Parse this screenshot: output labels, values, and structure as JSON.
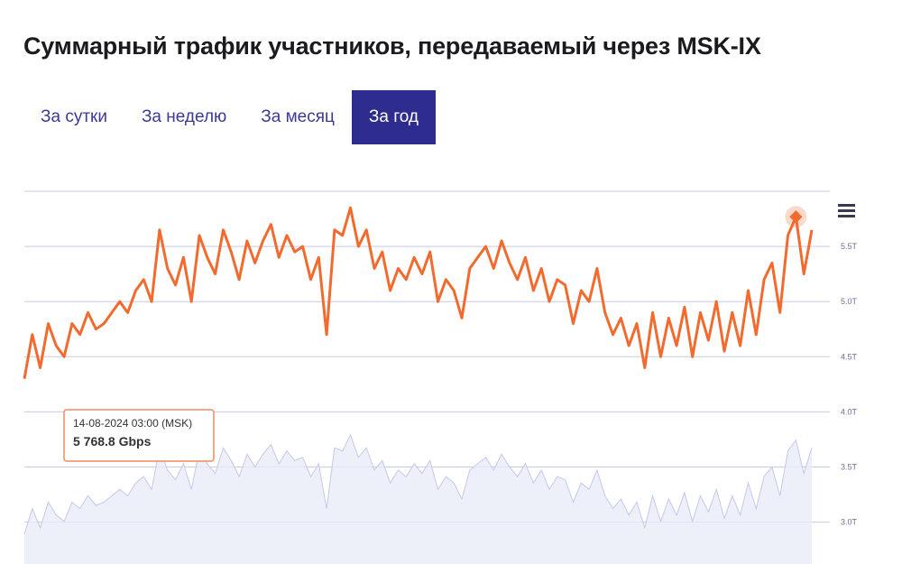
{
  "header": {
    "title": "Суммарный трафик участников, передаваемый через MSK-IX"
  },
  "tabs": [
    {
      "label": "За сутки",
      "selected": false
    },
    {
      "label": "За неделю",
      "selected": false
    },
    {
      "label": "За месяц",
      "selected": false
    },
    {
      "label": "За год",
      "selected": true
    }
  ],
  "chart_data": {
    "type": "line",
    "ylim": [
      2.62,
      6.0
    ],
    "yticks": [
      {
        "value": 3.0,
        "label": "3.0T"
      },
      {
        "value": 3.5,
        "label": "3.5T"
      },
      {
        "value": 4.0,
        "label": "4.0T"
      },
      {
        "value": 4.5,
        "label": "4.5T"
      },
      {
        "value": 5.0,
        "label": "5.0T"
      },
      {
        "value": 5.5,
        "label": "5.5T"
      }
    ],
    "grid": true,
    "series": [
      {
        "color": "#f26a2e",
        "values": [
          4.3,
          4.7,
          4.4,
          4.8,
          4.6,
          4.5,
          4.8,
          4.7,
          4.9,
          4.75,
          4.8,
          4.9,
          5.0,
          4.9,
          5.1,
          5.2,
          5.0,
          5.65,
          5.3,
          5.15,
          5.4,
          5.0,
          5.6,
          5.4,
          5.25,
          5.65,
          5.45,
          5.2,
          5.55,
          5.35,
          5.55,
          5.7,
          5.4,
          5.6,
          5.45,
          5.5,
          5.2,
          5.4,
          4.7,
          5.65,
          5.6,
          5.85,
          5.5,
          5.65,
          5.3,
          5.45,
          5.1,
          5.3,
          5.2,
          5.4,
          5.25,
          5.45,
          5.0,
          5.2,
          5.1,
          4.85,
          5.3,
          5.4,
          5.5,
          5.3,
          5.55,
          5.35,
          5.2,
          5.4,
          5.1,
          5.3,
          5.0,
          5.2,
          5.15,
          4.8,
          5.1,
          5.0,
          5.3,
          4.9,
          4.7,
          4.85,
          4.6,
          4.8,
          4.4,
          4.9,
          4.5,
          4.85,
          4.6,
          4.95,
          4.5,
          4.9,
          4.65,
          5.0,
          4.55,
          4.9,
          4.6,
          5.1,
          4.7,
          5.2,
          5.35,
          4.9,
          5.6,
          5.7688,
          5.25,
          5.65
        ]
      }
    ],
    "tooltip": {
      "point": 97,
      "date": "14-08-2024 03:00 (MSK)",
      "value_label": "5 768.8 Gbps"
    }
  }
}
